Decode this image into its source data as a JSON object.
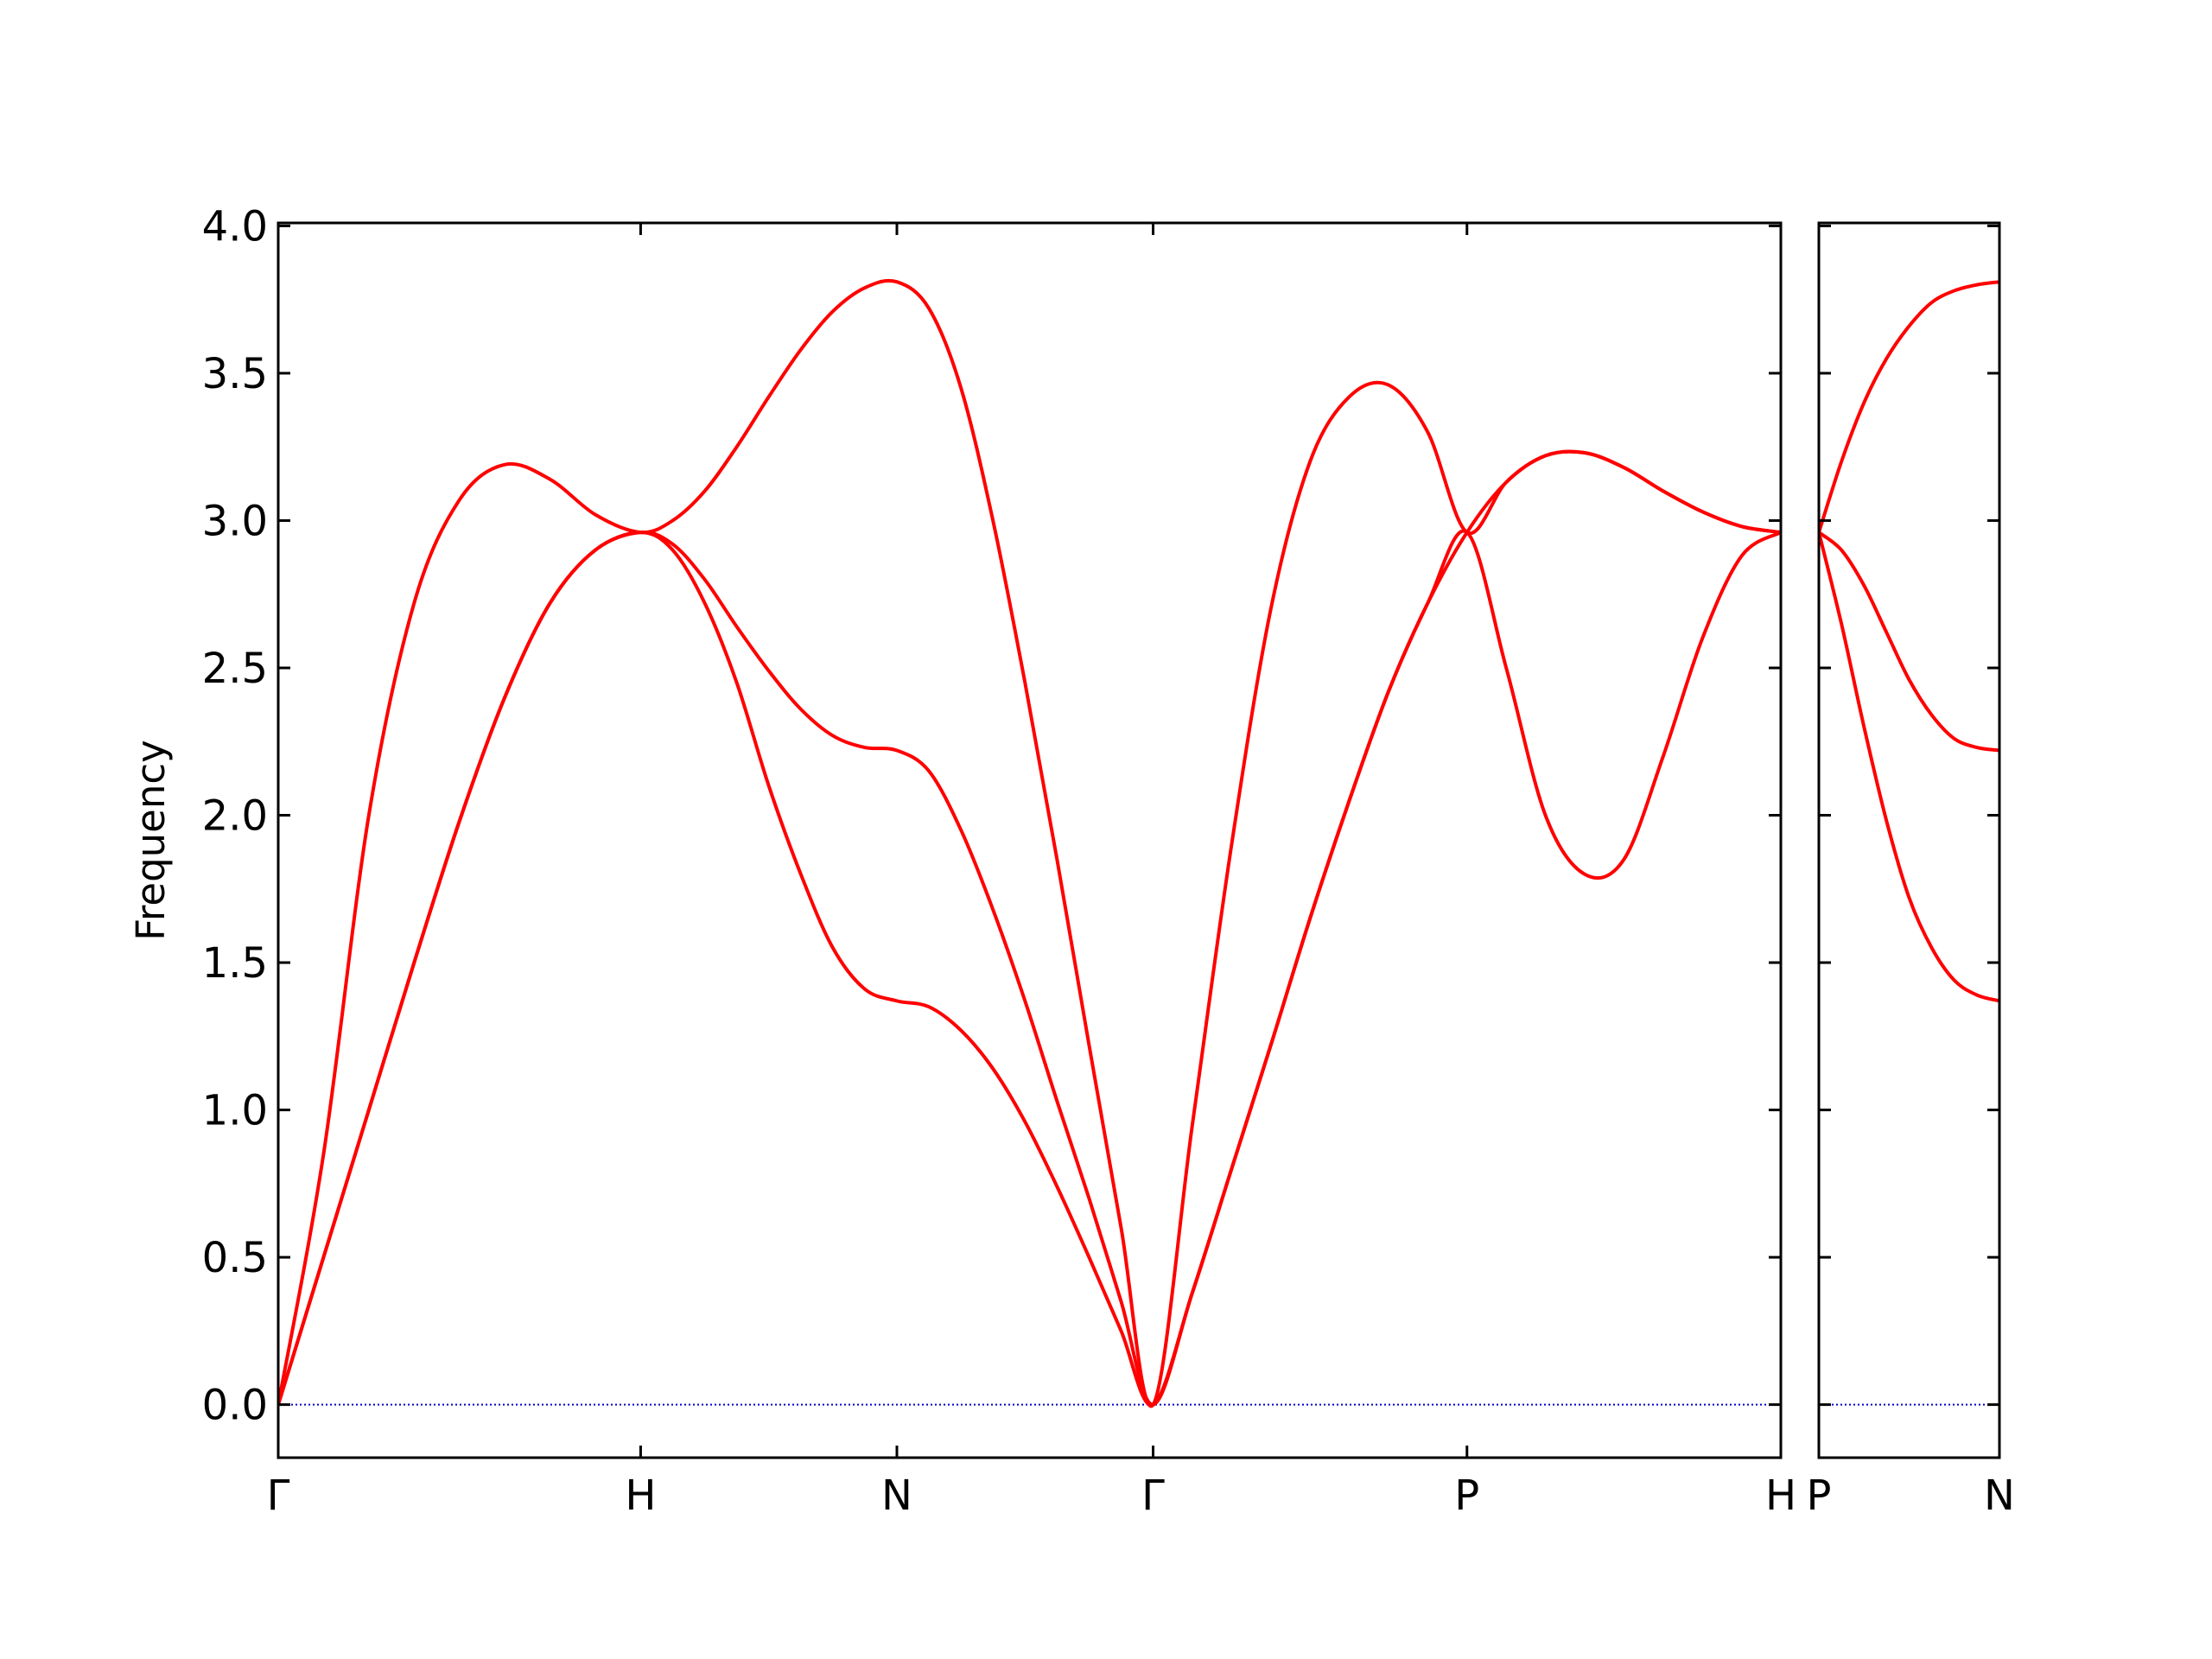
{
  "chart_data": [
    {
      "type": "line",
      "ylabel": "Frequency",
      "show_ytick_labels": true,
      "x": [
        0,
        0.125,
        0.25,
        0.375,
        0.5,
        0.625,
        0.75,
        0.875,
        1,
        1.0884,
        1.1768,
        1.2651,
        1.3535,
        1.4419,
        1.5303,
        1.6187,
        1.707,
        1.7954,
        1.8838,
        1.9721,
        2.0605,
        2.1489,
        2.2373,
        2.3257,
        2.414,
        2.5223,
        2.6305,
        2.7388,
        2.847,
        2.9553,
        3.0635,
        3.1718,
        3.28,
        3.3883,
        3.4965,
        3.6048,
        3.713,
        3.8213,
        3.9295,
        4.0378,
        4.146
      ],
      "series": [
        {
          "color": "#ff0000",
          "values": [
            0,
            0.5,
            1.0,
            1.5,
            1.98,
            2.4,
            2.72,
            2.9,
            2.96,
            2.9,
            2.72,
            2.45,
            2.1,
            1.8,
            1.55,
            1.41,
            1.37,
            1.35,
            1.27,
            1.14,
            0.96,
            0.74,
            0.5,
            0.25,
            0,
            0.38,
            0.8,
            1.22,
            1.65,
            2.05,
            2.42,
            2.72,
            2.96,
            2.5,
            2.0,
            1.8,
            1.85,
            2.2,
            2.6,
            2.88,
            2.96
          ]
        },
        {
          "color": "#ff0000",
          "values": [
            0,
            0.5,
            1.0,
            1.5,
            1.98,
            2.4,
            2.72,
            2.9,
            2.96,
            2.92,
            2.8,
            2.64,
            2.49,
            2.36,
            2.27,
            2.23,
            2.22,
            2.15,
            1.95,
            1.68,
            1.37,
            1.03,
            0.7,
            0.35,
            0,
            0.38,
            0.8,
            1.22,
            1.65,
            2.05,
            2.42,
            2.72,
            2.96,
            3.13,
            3.22,
            3.23,
            3.18,
            3.1,
            3.03,
            2.98,
            2.96
          ]
        },
        {
          "color": "#ff0000",
          "values": [
            0,
            0.85,
            2.0,
            2.72,
            3.07,
            3.19,
            3.14,
            3.02,
            2.96,
            3.0,
            3.1,
            3.25,
            3.42,
            3.58,
            3.71,
            3.79,
            3.81,
            3.72,
            3.45,
            3.0,
            2.45,
            1.85,
            1.22,
            0.6,
            0,
            0.95,
            1.9,
            2.7,
            3.2,
            3.42,
            3.46,
            3.3,
            2.96,
            3.13,
            3.22,
            3.23,
            3.18,
            3.1,
            3.03,
            2.98,
            2.96
          ]
        }
      ],
      "hline": 0,
      "hline_color": "#0000cc",
      "xlim": [
        0,
        4.146
      ],
      "xticks": [
        {
          "value": 0,
          "label": "Γ"
        },
        {
          "value": 1,
          "label": "H"
        },
        {
          "value": 1.707,
          "label": "N"
        },
        {
          "value": 2.414,
          "label": "Γ"
        },
        {
          "value": 3.28,
          "label": "P"
        },
        {
          "value": 4.146,
          "label": "H"
        }
      ],
      "ylim": [
        -0.18,
        4.01
      ],
      "yticks": [
        {
          "value": 0,
          "label": "0.0"
        },
        0.5,
        {
          "value": 1,
          "label": "1.0"
        },
        1.5,
        {
          "value": 2,
          "label": "2.0"
        },
        2.5,
        {
          "value": 3,
          "label": "3.0"
        },
        3.5,
        {
          "value": 4,
          "label": "4.0"
        }
      ]
    },
    {
      "type": "line",
      "show_ytick_labels": false,
      "x": [
        4.146,
        4.2085,
        4.271,
        4.3335,
        4.396,
        4.4585,
        4.521,
        4.5835,
        4.646
      ],
      "series": [
        {
          "color": "#ff0000",
          "values": [
            2.96,
            2.65,
            2.3,
            1.98,
            1.72,
            1.55,
            1.44,
            1.39,
            1.37
          ]
        },
        {
          "color": "#ff0000",
          "values": [
            2.96,
            2.9,
            2.78,
            2.62,
            2.46,
            2.34,
            2.26,
            2.23,
            2.22
          ]
        },
        {
          "color": "#ff0000",
          "values": [
            2.96,
            3.2,
            3.4,
            3.55,
            3.66,
            3.74,
            3.78,
            3.8,
            3.81
          ]
        }
      ],
      "hline": 0,
      "hline_color": "#0000cc",
      "xlim": [
        4.146,
        4.646
      ],
      "xticks": [
        {
          "value": 4.146,
          "label": "P"
        },
        {
          "value": 4.646,
          "label": "N"
        }
      ],
      "ylim": [
        -0.18,
        4.01
      ],
      "yticks": [
        {
          "value": 0,
          "label": "0.0"
        },
        0.5,
        {
          "value": 1,
          "label": "1.0"
        },
        1.5,
        {
          "value": 2,
          "label": "2.0"
        },
        2.5,
        {
          "value": 3,
          "label": "3.0"
        },
        3.5,
        {
          "value": 4,
          "label": "4.0"
        }
      ]
    }
  ]
}
